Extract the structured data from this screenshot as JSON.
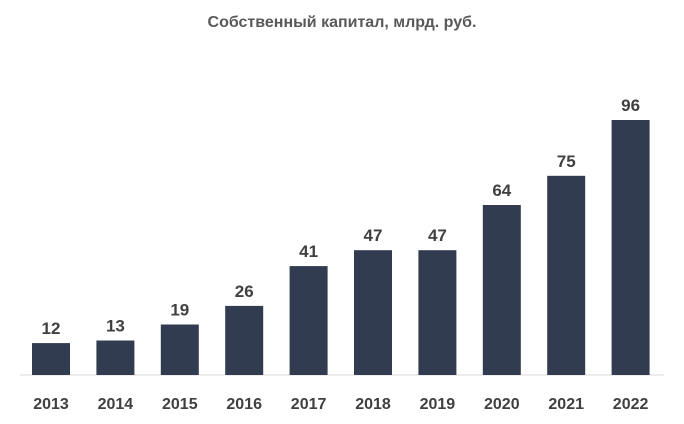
{
  "chart_data": {
    "type": "bar",
    "title": "Собственный капитал, млрд. руб.",
    "categories": [
      "2013",
      "2014",
      "2015",
      "2016",
      "2017",
      "2018",
      "2019",
      "2020",
      "2021",
      "2022"
    ],
    "values": [
      12,
      13,
      19,
      26,
      41,
      47,
      47,
      64,
      75,
      96
    ],
    "xlabel": "",
    "ylabel": "",
    "ylim": [
      0,
      96
    ],
    "grid": false,
    "legend": "none",
    "bar_color": "#323c50",
    "text_color": "#404040"
  }
}
